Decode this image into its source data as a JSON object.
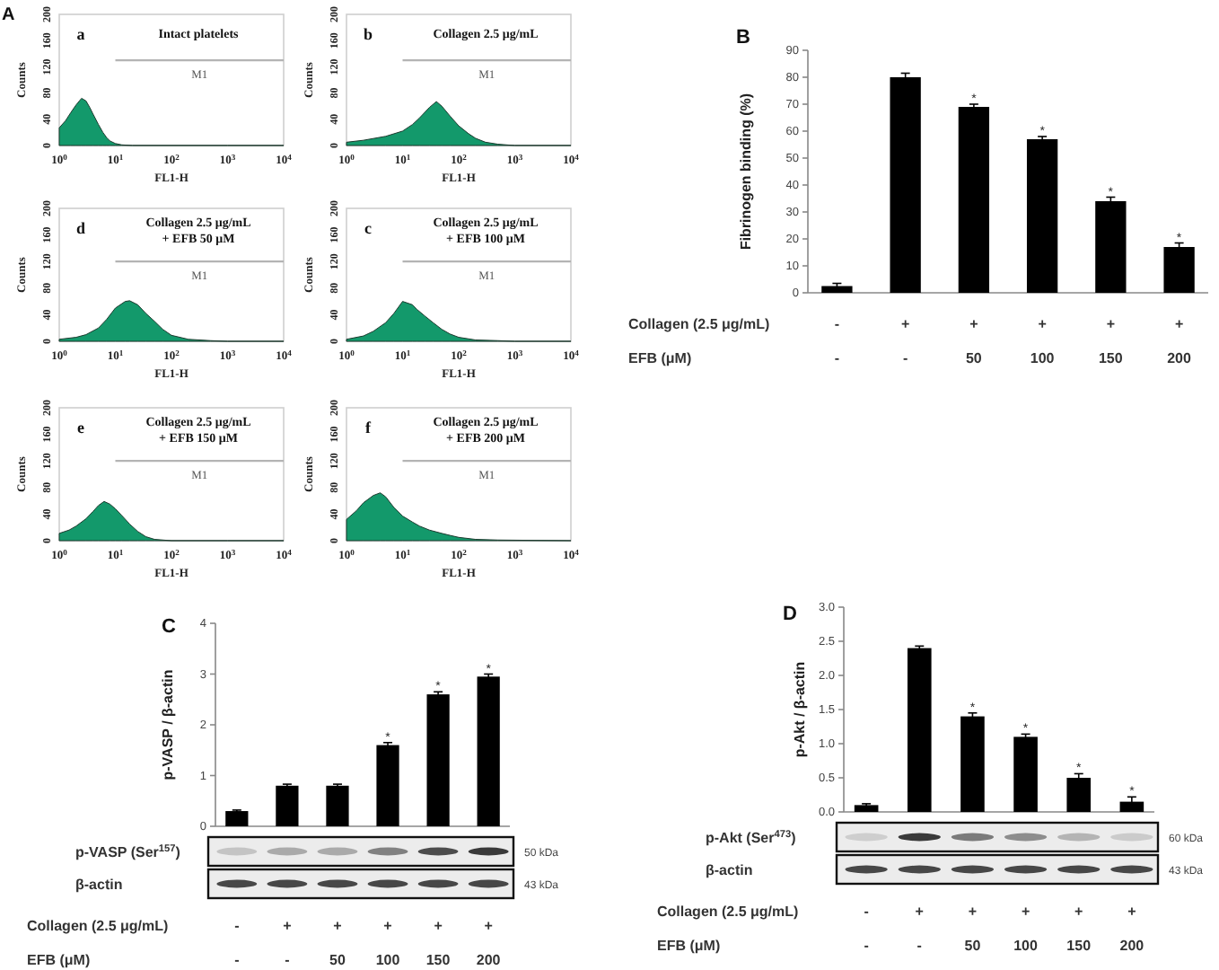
{
  "chart_data": [
    {
      "type": "area",
      "title": "Intact platelets",
      "annotations": [
        "a",
        "A"
      ],
      "xlabel": "FL1-H",
      "ylabel": "Counts",
      "log": "x",
      "x": [
        1,
        1.3,
        1.6,
        2,
        2.5,
        3,
        3.5,
        4,
        5,
        6,
        7,
        8,
        10,
        13,
        20,
        100,
        1000,
        10000
      ],
      "series": [
        {
          "values": [
            27,
            38,
            50,
            62,
            72,
            68,
            58,
            48,
            32,
            20,
            12,
            7,
            3,
            1,
            0,
            0,
            0,
            0
          ],
          "color": "#13996b"
        },
        {
          "type": "line",
          "name": "M1",
          "values": [
            null,
            null,
            null,
            null,
            null,
            null,
            null,
            null,
            null,
            null,
            null,
            null,
            130,
            130,
            130,
            130,
            130,
            130
          ],
          "color": "#b4b4b4"
        }
      ],
      "xlim": [
        1,
        10000
      ],
      "xticks": [
        {
          "value": 1,
          "label": "10$^{0}$"
        },
        {
          "value": 10,
          "label": "10$^{1}$"
        },
        {
          "value": 100,
          "label": "10$^{2}$"
        },
        {
          "value": 1000,
          "label": "10$^{3}$"
        },
        {
          "value": 10000,
          "label": "10$^{4}$"
        }
      ],
      "ylim": [
        0,
        200
      ],
      "yticks": [
        0,
        40,
        80,
        120,
        160,
        200
      ]
    },
    {
      "type": "area",
      "title": "Collagen 2.5 μg/mL",
      "annotations": [
        "b"
      ],
      "xlabel": "FL1-H",
      "ylabel": "Counts",
      "log": "x",
      "x": [
        1,
        2,
        5,
        10,
        15,
        20,
        30,
        40,
        50,
        70,
        100,
        150,
        200,
        300,
        500,
        1000,
        10000
      ],
      "series": [
        {
          "values": [
            5,
            8,
            14,
            22,
            32,
            42,
            58,
            67,
            60,
            45,
            30,
            18,
            11,
            5,
            2,
            0,
            0
          ],
          "color": "#13996b"
        },
        {
          "type": "line",
          "name": "M1",
          "values": [
            null,
            null,
            null,
            130,
            130,
            130,
            130,
            130,
            130,
            130,
            130,
            130,
            130,
            130,
            130,
            130,
            130
          ],
          "color": "#b4b4b4"
        }
      ],
      "xlim": [
        1,
        10000
      ],
      "xticks": [
        {
          "value": 1,
          "label": "10$^{0}$"
        },
        {
          "value": 10,
          "label": "10$^{1}$"
        },
        {
          "value": 100,
          "label": "10$^{2}$"
        },
        {
          "value": 1000,
          "label": "10$^{3}$"
        },
        {
          "value": 10000,
          "label": "10$^{4}$"
        }
      ],
      "ylim": [
        0,
        200
      ],
      "yticks": [
        0,
        40,
        80,
        120,
        160,
        200
      ]
    },
    {
      "type": "area",
      "title": "Collagen 2.5 μg/mL",
      "subtitle": "+ EFB 50 μM",
      "annotations": [
        "d"
      ],
      "xlabel": "FL1-H",
      "ylabel": "Counts",
      "log": "x",
      "x": [
        1,
        2,
        3,
        5,
        7,
        10,
        15,
        18,
        25,
        35,
        50,
        70,
        100,
        200,
        500,
        1000,
        10000
      ],
      "series": [
        {
          "values": [
            3,
            6,
            10,
            20,
            33,
            50,
            60,
            61,
            55,
            42,
            30,
            18,
            9,
            3,
            1,
            0,
            0
          ],
          "color": "#13996b"
        },
        {
          "type": "line",
          "name": "M1",
          "values": [
            null,
            null,
            null,
            null,
            null,
            120,
            120,
            120,
            120,
            120,
            120,
            120,
            120,
            120,
            120,
            120,
            120
          ],
          "color": "#b4b4b4"
        }
      ],
      "xlim": [
        1,
        10000
      ],
      "xticks": [
        {
          "value": 1,
          "label": "10$^{0}$"
        },
        {
          "value": 10,
          "label": "10$^{1}$"
        },
        {
          "value": 100,
          "label": "10$^{2}$"
        },
        {
          "value": 1000,
          "label": "10$^{3}$"
        },
        {
          "value": 10000,
          "label": "10$^{4}$"
        }
      ],
      "ylim": [
        0,
        200
      ],
      "yticks": [
        0,
        40,
        80,
        120,
        160,
        200
      ]
    },
    {
      "type": "area",
      "title": "Collagen 2.5 μg/mL",
      "subtitle": "+ EFB 100 μM",
      "annotations": [
        "c"
      ],
      "xlabel": "FL1-H",
      "ylabel": "Counts",
      "log": "x",
      "x": [
        1,
        2,
        3,
        5,
        7,
        10,
        15,
        18,
        25,
        35,
        50,
        70,
        100,
        200,
        500,
        1000,
        10000
      ],
      "series": [
        {
          "values": [
            3,
            8,
            15,
            28,
            42,
            60,
            55,
            48,
            38,
            28,
            18,
            11,
            6,
            2,
            1,
            0,
            0
          ],
          "color": "#13996b"
        },
        {
          "type": "line",
          "name": "M1",
          "values": [
            null,
            null,
            null,
            null,
            null,
            120,
            120,
            120,
            120,
            120,
            120,
            120,
            120,
            120,
            120,
            120,
            120
          ],
          "color": "#b4b4b4"
        }
      ],
      "xlim": [
        1,
        10000
      ],
      "xticks": [
        {
          "value": 1,
          "label": "10$^{0}$"
        },
        {
          "value": 10,
          "label": "10$^{1}$"
        },
        {
          "value": 100,
          "label": "10$^{2}$"
        },
        {
          "value": 1000,
          "label": "10$^{3}$"
        },
        {
          "value": 10000,
          "label": "10$^{4}$"
        }
      ],
      "ylim": [
        0,
        200
      ],
      "yticks": [
        0,
        40,
        80,
        120,
        160,
        200
      ]
    },
    {
      "type": "area",
      "title": "Collagen 2.5 μg/mL",
      "subtitle": "+ EFB 150 μM",
      "annotations": [
        "e"
      ],
      "xlabel": "FL1-H",
      "ylabel": "Counts",
      "log": "x",
      "x": [
        1,
        1.5,
        2,
        3,
        4,
        5,
        6.3,
        8,
        10,
        13,
        18,
        25,
        35,
        50,
        100,
        1000,
        10000
      ],
      "series": [
        {
          "values": [
            11,
            16,
            22,
            33,
            44,
            53,
            59,
            55,
            48,
            38,
            25,
            14,
            6,
            2,
            0,
            0,
            0
          ],
          "color": "#13996b"
        },
        {
          "type": "line",
          "name": "M1",
          "values": [
            null,
            null,
            null,
            null,
            null,
            null,
            null,
            null,
            120,
            120,
            120,
            120,
            120,
            120,
            120,
            120,
            120
          ],
          "color": "#b4b4b4"
        }
      ],
      "xlim": [
        1,
        10000
      ],
      "xticks": [
        {
          "value": 1,
          "label": "10$^{0}$"
        },
        {
          "value": 10,
          "label": "10$^{1}$"
        },
        {
          "value": 100,
          "label": "10$^{2}$"
        },
        {
          "value": 1000,
          "label": "10$^{3}$"
        },
        {
          "value": 10000,
          "label": "10$^{4}$"
        }
      ],
      "ylim": [
        0,
        200
      ],
      "yticks": [
        0,
        40,
        80,
        120,
        160,
        200
      ]
    },
    {
      "type": "area",
      "title": "Collagen 2.5 μg/mL",
      "subtitle": "+ EFB 200 μM",
      "annotations": [
        "f"
      ],
      "xlabel": "FL1-H",
      "ylabel": "Counts",
      "log": "x",
      "x": [
        1,
        1.5,
        2,
        3,
        4,
        5,
        7,
        10,
        15,
        20,
        30,
        50,
        70,
        100,
        200,
        500,
        10000
      ],
      "series": [
        {
          "values": [
            32,
            45,
            57,
            68,
            72,
            66,
            50,
            37,
            28,
            22,
            16,
            11,
            8,
            5,
            2,
            1,
            0
          ],
          "color": "#13996b"
        },
        {
          "type": "line",
          "name": "M1",
          "values": [
            null,
            null,
            null,
            null,
            null,
            null,
            null,
            120,
            120,
            120,
            120,
            120,
            120,
            120,
            120,
            120,
            120
          ],
          "color": "#b4b4b4"
        }
      ],
      "xlim": [
        1,
        10000
      ],
      "xticks": [
        {
          "value": 1,
          "label": "10$^{0}$"
        },
        {
          "value": 10,
          "label": "10$^{1}$"
        },
        {
          "value": 100,
          "label": "10$^{2}$"
        },
        {
          "value": 1000,
          "label": "10$^{3}$"
        },
        {
          "value": 10000,
          "label": "10$^{4}$"
        }
      ],
      "ylim": [
        0,
        200
      ],
      "yticks": [
        0,
        40,
        80,
        120,
        160,
        200
      ]
    },
    {
      "type": "bar",
      "title": "B",
      "ylabel": "Fibrinogen binding (%)",
      "categories": [
        "-\n-",
        "+\n-",
        "+\n50",
        "+\n100",
        "+\n150",
        "+\n200"
      ],
      "values": [
        2.5,
        80,
        69,
        57,
        34,
        17
      ],
      "errors": [
        1,
        1.5,
        1,
        1,
        1.5,
        1.5
      ],
      "value_labels": [
        null,
        null,
        "*",
        "*",
        "*",
        "*"
      ],
      "color": "#000000",
      "ylim": [
        0,
        90
      ],
      "yticks": [
        0,
        10,
        20,
        30,
        40,
        50,
        60,
        70,
        80,
        90
      ],
      "annotations": [
        "Collagen (2.5 μg/mL)",
        "EFB (μM)"
      ]
    },
    {
      "type": "bar",
      "title": "C",
      "ylabel": "p-VASP / β-actin",
      "categories": [
        "-\n-",
        "+\n-",
        "+\n50",
        "+\n100",
        "+\n150",
        "+\n200"
      ],
      "values": [
        0.3,
        0.8,
        0.8,
        1.6,
        2.6,
        2.95
      ],
      "errors": [
        0.02,
        0.03,
        0.03,
        0.05,
        0.05,
        0.05
      ],
      "value_labels": [
        null,
        null,
        null,
        "*",
        "*",
        "*"
      ],
      "color": "#000000",
      "ylim": [
        0,
        4
      ],
      "yticks": [
        0,
        1,
        2,
        3,
        4
      ],
      "annotations": [
        "p-VASP (Ser$^{157}$)",
        "β-actin",
        "Collagen (2.5 μg/mL)",
        "EFB (μM)",
        "50 kDa",
        "43 kDa"
      ]
    },
    {
      "type": "bar",
      "title": "D",
      "ylabel": "p-Akt / β-actin",
      "categories": [
        "-\n-",
        "+\n-",
        "+\n50",
        "+\n100",
        "+\n150",
        "+\n200"
      ],
      "values": [
        0.1,
        2.4,
        1.4,
        1.1,
        0.5,
        0.15
      ],
      "errors": [
        0.02,
        0.03,
        0.05,
        0.04,
        0.06,
        0.07
      ],
      "value_labels": [
        null,
        null,
        "*",
        "*",
        "*",
        "*"
      ],
      "color": "#000000",
      "ylim": [
        0,
        3
      ],
      "yticks": [
        {
          "value": 0,
          "label": "0.0"
        },
        {
          "value": 0.5,
          "label": "0.5"
        },
        {
          "value": 1,
          "label": "1.0"
        },
        {
          "value": 1.5,
          "label": "1.5"
        },
        {
          "value": 2,
          "label": "2.0"
        },
        {
          "value": 2.5,
          "label": "2.5"
        },
        {
          "value": 3,
          "label": "3.0"
        }
      ],
      "annotations": [
        "p-Akt (Ser$^{473}$)",
        "β-actin",
        "Collagen (2.5 μg/mL)",
        "EFB (μM)",
        "60 kDa",
        "43 kDa"
      ]
    }
  ]
}
